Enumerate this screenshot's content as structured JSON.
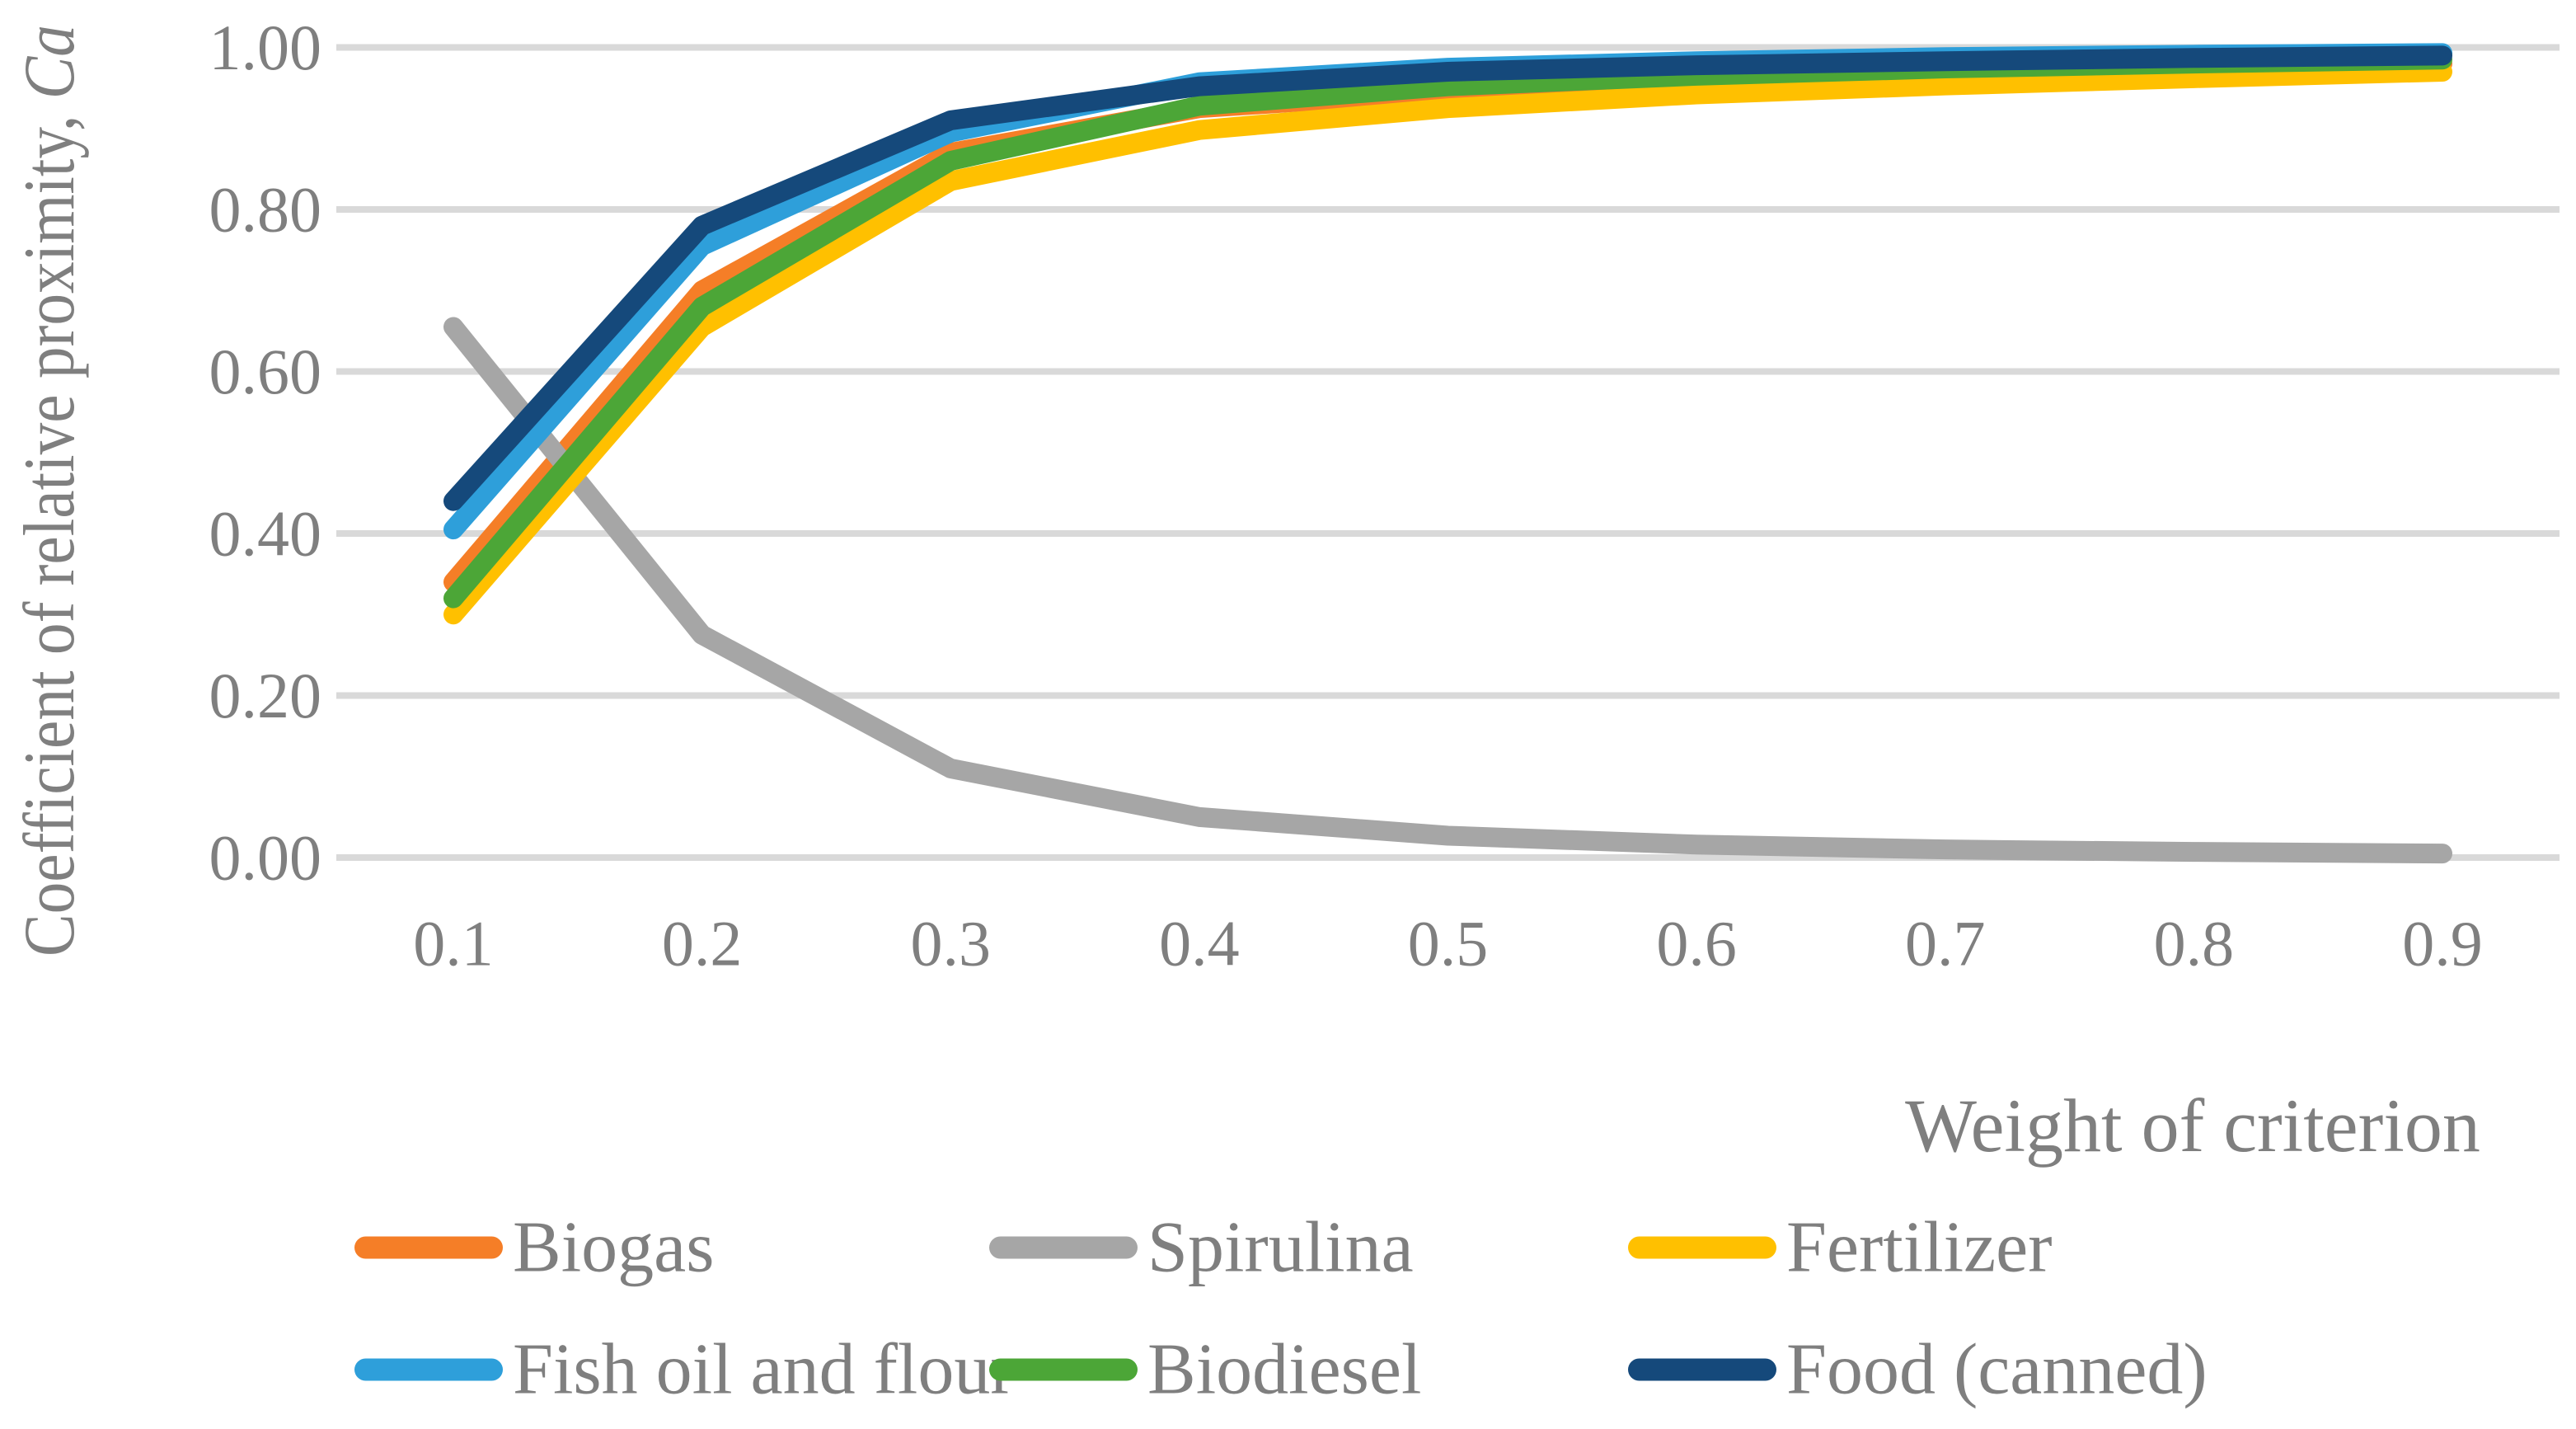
{
  "chart_data": {
    "type": "line",
    "title": "",
    "xlabel": "Weight of criterion",
    "ylabel": "Coefficient of relative proximity, Ca",
    "ylabel_main": "Coefficient of relative proximity, ",
    "ylabel_symbol": "Ca",
    "x": [
      0.1,
      0.2,
      0.3,
      0.4,
      0.5,
      0.6,
      0.7,
      0.8,
      0.9
    ],
    "x_tick_labels": [
      "0.1",
      "0.2",
      "0.3",
      "0.4",
      "0.5",
      "0.6",
      "0.7",
      "0.8",
      "0.9"
    ],
    "y_tick_labels": [
      "0.00",
      "0.20",
      "0.40",
      "0.60",
      "0.80",
      "1.00"
    ],
    "y_ticks": [
      0.0,
      0.2,
      0.4,
      0.6,
      0.8,
      1.0
    ],
    "ylim": [
      0,
      1
    ],
    "grid": "horizontal",
    "legend_position": "bottom",
    "colors": {
      "gridline": "#D9D9D9",
      "text": "#7F7F7F",
      "background": "#FFFFFF"
    },
    "series": [
      {
        "name": "Biogas",
        "color": "#F57E27",
        "values": [
          0.34,
          0.7,
          0.87,
          0.925,
          0.945,
          0.96,
          0.968,
          0.974,
          0.98
        ]
      },
      {
        "name": "Spirulina",
        "color": "#A6A6A6",
        "values": [
          0.655,
          0.275,
          0.11,
          0.05,
          0.027,
          0.016,
          0.01,
          0.007,
          0.005
        ]
      },
      {
        "name": "Fertilizer",
        "color": "#FFC000",
        "values": [
          0.3,
          0.655,
          0.835,
          0.898,
          0.925,
          0.942,
          0.953,
          0.962,
          0.97
        ]
      },
      {
        "name": "Fish oil and flour",
        "color": "#2E9FDA",
        "values": [
          0.405,
          0.755,
          0.895,
          0.957,
          0.975,
          0.983,
          0.988,
          0.991,
          0.993
        ]
      },
      {
        "name": "Biodiesel",
        "color": "#4CA637",
        "values": [
          0.32,
          0.68,
          0.86,
          0.928,
          0.952,
          0.965,
          0.974,
          0.98,
          0.985
        ]
      },
      {
        "name": "Food (canned)",
        "color": "#15497B",
        "values": [
          0.44,
          0.78,
          0.91,
          0.952,
          0.97,
          0.978,
          0.983,
          0.987,
          0.99
        ]
      }
    ]
  }
}
